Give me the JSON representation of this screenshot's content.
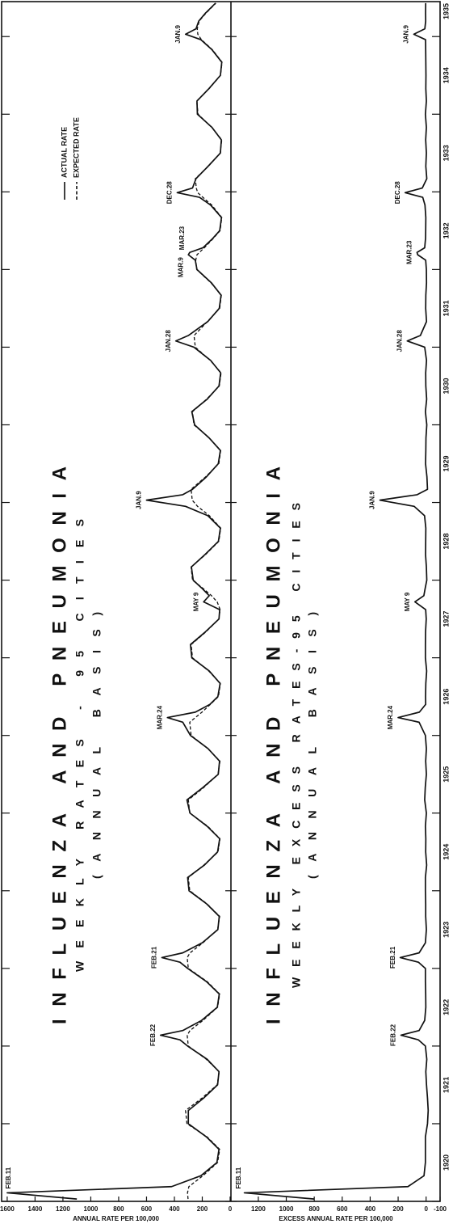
{
  "chart_data": [
    {
      "type": "line",
      "title": "INFLUENZA AND PNEUMONIA",
      "subtitle": "WEEKLY RATES - 95 CITIES",
      "subtitle2": "(ANNUAL BASIS)",
      "ylabel": "ANNUAL RATE PER 100,000",
      "xlim": [
        1920,
        1935.45
      ],
      "ylim": [
        0,
        1640
      ],
      "yticks": [
        0,
        200,
        400,
        600,
        800,
        1000,
        1200,
        1400,
        1600
      ],
      "legend": "upper right",
      "x": [
        1920.03,
        1920.11,
        1920.19,
        1920.33,
        1920.5,
        1920.67,
        1920.83,
        1921,
        1921.17,
        1921.33,
        1921.5,
        1921.67,
        1921.83,
        1922,
        1922.08,
        1922.14,
        1922.2,
        1922.33,
        1922.5,
        1922.67,
        1922.83,
        1923,
        1923.08,
        1923.14,
        1923.2,
        1923.33,
        1923.5,
        1923.67,
        1923.83,
        1924,
        1924.17,
        1924.33,
        1924.5,
        1924.67,
        1924.83,
        1925,
        1925.17,
        1925.33,
        1925.5,
        1925.67,
        1925.83,
        1926,
        1926.17,
        1926.23,
        1926.3,
        1926.4,
        1926.5,
        1926.67,
        1926.83,
        1927,
        1927.17,
        1927.33,
        1927.5,
        1927.62,
        1927.72,
        1927.8,
        1927.9,
        1928,
        1928.17,
        1928.33,
        1928.5,
        1928.67,
        1928.83,
        1928.95,
        1929.03,
        1929.1,
        1929.17,
        1929.33,
        1929.5,
        1929.67,
        1929.83,
        1930,
        1930.17,
        1930.33,
        1930.5,
        1930.67,
        1930.83,
        1931,
        1931.08,
        1931.15,
        1931.33,
        1931.5,
        1931.67,
        1931.83,
        1932,
        1932.12,
        1932.19,
        1932.22,
        1932.28,
        1932.4,
        1932.5,
        1932.67,
        1932.83,
        1932.93,
        1932.99,
        1933.05,
        1933.17,
        1933.33,
        1933.5,
        1933.67,
        1933.83,
        1934,
        1934.17,
        1934.33,
        1934.5,
        1934.67,
        1934.83,
        1934.96,
        1935.03,
        1935.1,
        1935.2,
        1935.3,
        1935.43
      ],
      "series": [
        {
          "name": "ACTUAL RATE",
          "color": "#111111",
          "style": "solid",
          "values": [
            1100,
            1600,
            420,
            210,
            95,
            80,
            170,
            300,
            300,
            190,
            90,
            80,
            165,
            305,
            360,
            500,
            340,
            205,
            92,
            78,
            170,
            305,
            360,
            490,
            340,
            200,
            88,
            78,
            168,
            295,
            305,
            185,
            90,
            75,
            165,
            288,
            310,
            195,
            85,
            76,
            158,
            285,
            340,
            450,
            250,
            145,
            88,
            72,
            150,
            275,
            285,
            180,
            80,
            75,
            190,
            150,
            205,
            265,
            278,
            180,
            84,
            70,
            160,
            320,
            600,
            340,
            270,
            170,
            85,
            70,
            150,
            255,
            275,
            165,
            80,
            68,
            140,
            260,
            390,
            300,
            160,
            78,
            65,
            135,
            238,
            250,
            300,
            290,
            195,
            125,
            75,
            62,
            140,
            220,
            380,
            270,
            245,
            158,
            70,
            63,
            130,
            235,
            238,
            152,
            70,
            60,
            130,
            210,
            320,
            245,
            225,
            178,
            105
          ]
        },
        {
          "name": "EXPECTED RATE",
          "color": "#111111",
          "style": "dashed",
          "values": [
            302,
            306,
            296,
            195,
            90,
            75,
            165,
            310,
            320,
            202,
            93,
            78,
            171,
            300,
            305,
            308,
            288,
            195,
            90,
            75,
            165,
            300,
            305,
            308,
            288,
            195,
            90,
            75,
            165,
            290,
            300,
            189,
            87,
            73,
            160,
            290,
            300,
            189,
            87,
            73,
            160,
            280,
            290,
            250,
            202,
            142,
            84,
            70,
            154,
            270,
            280,
            176,
            81,
            72,
            93,
            134,
            199,
            270,
            280,
            176,
            81,
            68,
            149,
            234,
            272,
            276,
            280,
            176,
            81,
            68,
            149,
            260,
            270,
            169,
            78,
            65,
            143,
            250,
            255,
            259,
            163,
            75,
            63,
            138,
            240,
            247,
            238,
            221,
            185,
            121,
            72,
            60,
            132,
            196,
            233,
            243,
            250,
            156,
            72,
            60,
            132,
            230,
            240,
            150,
            69,
            58,
            127,
            206,
            232,
            236,
            222,
            174,
            102
          ]
        }
      ],
      "annotations": [
        {
          "text": "FEB.11",
          "x": 1920.11,
          "y": 1600
        },
        {
          "text": "FEB.22",
          "x": 1922.14,
          "y": 500
        },
        {
          "text": "FEB.21",
          "x": 1923.14,
          "y": 490
        },
        {
          "text": "MAR.24",
          "x": 1926.23,
          "y": 450
        },
        {
          "text": "MAY 9",
          "x": 1927.72,
          "y": 190
        },
        {
          "text": "JAN.9",
          "x": 1929.03,
          "y": 600
        },
        {
          "text": "JAN.28",
          "x": 1931.08,
          "y": 390
        },
        {
          "text": "MAR.9",
          "x": 1932.19,
          "y": 300
        },
        {
          "text": "MAR.23",
          "x": 1932.22,
          "y": 290
        },
        {
          "text": "DEC.28",
          "x": 1932.99,
          "y": 380
        },
        {
          "text": "JAN.9",
          "x": 1935.03,
          "y": 320
        }
      ]
    },
    {
      "type": "line",
      "title": "INFLUENZA AND PNEUMONIA",
      "subtitle": "WEEKLY EXCESS RATES-95 CITIES",
      "subtitle2": "(ANNUAL BASIS)",
      "ylabel": "EXCESS ANNUAL RATE PER 100,000",
      "xlim": [
        1920,
        1935.45
      ],
      "ylim": [
        -100,
        1390
      ],
      "yticks": [
        -100,
        0,
        200,
        400,
        600,
        800,
        1000,
        1200
      ],
      "xticks": [
        1920,
        1921,
        1922,
        1923,
        1924,
        1925,
        1926,
        1927,
        1928,
        1929,
        1930,
        1931,
        1932,
        1933,
        1934,
        1935
      ],
      "color": "#111111",
      "x": [
        1920.03,
        1920.11,
        1920.19,
        1920.33,
        1920.5,
        1920.67,
        1920.83,
        1921,
        1921.17,
        1921.33,
        1921.5,
        1921.67,
        1921.83,
        1922,
        1922.08,
        1922.14,
        1922.2,
        1922.33,
        1922.5,
        1922.67,
        1922.83,
        1923,
        1923.08,
        1923.14,
        1923.2,
        1923.33,
        1923.5,
        1923.67,
        1923.83,
        1924,
        1924.17,
        1924.33,
        1924.5,
        1924.67,
        1924.83,
        1925,
        1925.17,
        1925.33,
        1925.5,
        1925.67,
        1925.83,
        1926,
        1926.17,
        1926.23,
        1926.3,
        1926.4,
        1926.5,
        1926.67,
        1926.83,
        1927,
        1927.17,
        1927.33,
        1927.5,
        1927.62,
        1927.72,
        1927.8,
        1927.9,
        1928,
        1928.17,
        1928.33,
        1928.5,
        1928.67,
        1928.83,
        1928.95,
        1929.03,
        1929.1,
        1929.17,
        1929.33,
        1929.5,
        1929.67,
        1929.83,
        1930,
        1930.17,
        1930.33,
        1930.5,
        1930.67,
        1930.83,
        1931,
        1931.08,
        1931.15,
        1931.33,
        1931.5,
        1931.67,
        1931.83,
        1932,
        1932.12,
        1932.19,
        1932.22,
        1932.28,
        1932.4,
        1932.5,
        1932.67,
        1932.83,
        1932.93,
        1932.99,
        1933.05,
        1933.17,
        1933.33,
        1933.5,
        1933.67,
        1933.83,
        1934,
        1934.17,
        1934.33,
        1934.5,
        1934.67,
        1934.83,
        1934.96,
        1935.03,
        1935.1,
        1935.2,
        1935.3,
        1935.43
      ],
      "values": [
        800,
        1300,
        130,
        15,
        5,
        5,
        5,
        -10,
        -15,
        -10,
        -3,
        2,
        -5,
        5,
        55,
        180,
        50,
        10,
        2,
        3,
        5,
        5,
        55,
        185,
        50,
        5,
        -2,
        3,
        3,
        5,
        5,
        -4,
        3,
        2,
        5,
        -2,
        10,
        6,
        -2,
        3,
        -2,
        5,
        50,
        200,
        48,
        3,
        4,
        2,
        -4,
        5,
        5,
        4,
        -1,
        3,
        80,
        16,
        6,
        -5,
        -2,
        4,
        3,
        2,
        11,
        85,
        330,
        64,
        -10,
        -6,
        4,
        2,
        1,
        -5,
        5,
        -4,
        2,
        3,
        -3,
        10,
        135,
        41,
        -3,
        3,
        2,
        -3,
        -2,
        3,
        60,
        65,
        10,
        4,
        3,
        2,
        8,
        24,
        150,
        27,
        -5,
        2,
        -2,
        3,
        -2,
        5,
        -2,
        2,
        1,
        2,
        3,
        4,
        88,
        9,
        3,
        4,
        3
      ],
      "annotations": [
        {
          "text": "FEB.11",
          "x": 1920.11,
          "y": 1300
        },
        {
          "text": "FEB.22",
          "x": 1922.14,
          "y": 180
        },
        {
          "text": "FEB.21",
          "x": 1923.14,
          "y": 185
        },
        {
          "text": "MAR.24",
          "x": 1926.23,
          "y": 200
        },
        {
          "text": "MAY 9",
          "x": 1927.72,
          "y": 80
        },
        {
          "text": "JAN.9",
          "x": 1929.03,
          "y": 330
        },
        {
          "text": "JAN.28",
          "x": 1931.08,
          "y": 135
        },
        {
          "text": "MAR.23",
          "x": 1932.22,
          "y": 65
        },
        {
          "text": "DEC.28",
          "x": 1932.99,
          "y": 150
        },
        {
          "text": "JAN.9",
          "x": 1935.03,
          "y": 88
        }
      ]
    }
  ]
}
